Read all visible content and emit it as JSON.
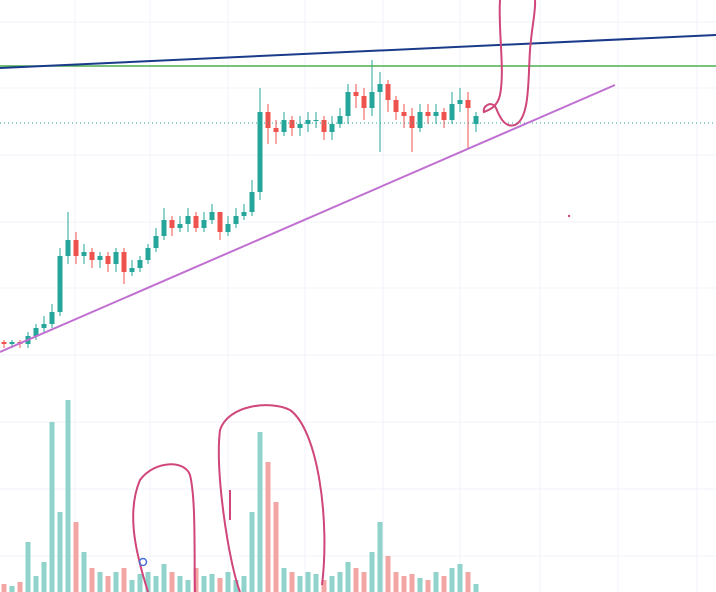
{
  "chart_data": {
    "type": "candlestick",
    "open": [
      14.5,
      14,
      14.5,
      14,
      16,
      18,
      19,
      22,
      36,
      40,
      36,
      37,
      35,
      36,
      34,
      37,
      32,
      33,
      35,
      38,
      41,
      45,
      43,
      44,
      46,
      43,
      45,
      47,
      42,
      44,
      46,
      47,
      52,
      72,
      68,
      67,
      70,
      68,
      69,
      70,
      70,
      67,
      69,
      71,
      77,
      76,
      73,
      77,
      79,
      75,
      72,
      71,
      68,
      72,
      71,
      72,
      70,
      74,
      75,
      69
    ],
    "high": [
      15,
      15,
      15,
      17,
      19,
      21,
      24,
      38,
      47,
      42,
      39,
      38,
      37,
      37,
      38,
      38,
      35,
      36,
      39,
      43,
      48,
      46,
      46,
      48,
      47,
      47,
      49,
      47,
      46,
      48,
      49,
      55,
      78,
      74,
      70,
      72,
      71,
      71,
      72,
      72,
      71,
      71,
      73,
      79,
      79,
      78,
      85,
      82,
      80,
      76,
      74,
      73,
      74,
      74,
      74,
      73,
      77,
      78,
      77,
      72
    ],
    "low": [
      13,
      13,
      13,
      13,
      15,
      17,
      18,
      21,
      34,
      34,
      34,
      33,
      33,
      32,
      32,
      29,
      31,
      32,
      34,
      37,
      40,
      41,
      42,
      42,
      42,
      42,
      44,
      40,
      41,
      43,
      45,
      46,
      50,
      64,
      64,
      66,
      66,
      66,
      67,
      68,
      65,
      65,
      68,
      69,
      73,
      70,
      71,
      62,
      72,
      70,
      68,
      62,
      67,
      69,
      69,
      68,
      69,
      72,
      63,
      67
    ],
    "close": [
      14,
      14.5,
      14,
      16,
      18,
      19,
      22,
      36,
      40,
      36,
      37,
      35,
      36,
      34,
      37,
      32,
      33,
      35,
      38,
      41,
      45,
      43,
      44,
      46,
      43,
      45,
      47,
      42,
      44,
      46,
      47,
      52,
      72,
      68,
      67,
      70,
      68,
      69,
      70,
      70,
      67,
      69,
      71,
      77,
      76,
      73,
      77,
      79,
      75,
      72,
      71,
      68,
      72,
      71,
      72,
      70,
      74,
      75,
      73,
      71
    ],
    "volume": [
      4,
      3,
      5,
      25,
      8,
      15,
      85,
      40,
      96,
      35,
      20,
      12,
      10,
      8,
      10,
      12,
      6,
      9,
      10,
      8,
      14,
      10,
      8,
      6,
      12,
      8,
      9,
      7,
      10,
      6,
      8,
      40,
      80,
      65,
      45,
      12,
      10,
      8,
      10,
      9,
      6,
      8,
      10,
      15,
      12,
      10,
      20,
      35,
      18,
      10,
      8,
      9,
      7,
      6,
      10,
      8,
      12,
      14,
      10,
      4
    ],
    "up_color": "#26a69a",
    "down_color": "#ef5350",
    "volume_up_color": "#8fd3cb",
    "volume_down_color": "#f2a7a5",
    "ylim": [
      0,
      100
    ],
    "volume_ylim": [
      0,
      100
    ]
  }
}
